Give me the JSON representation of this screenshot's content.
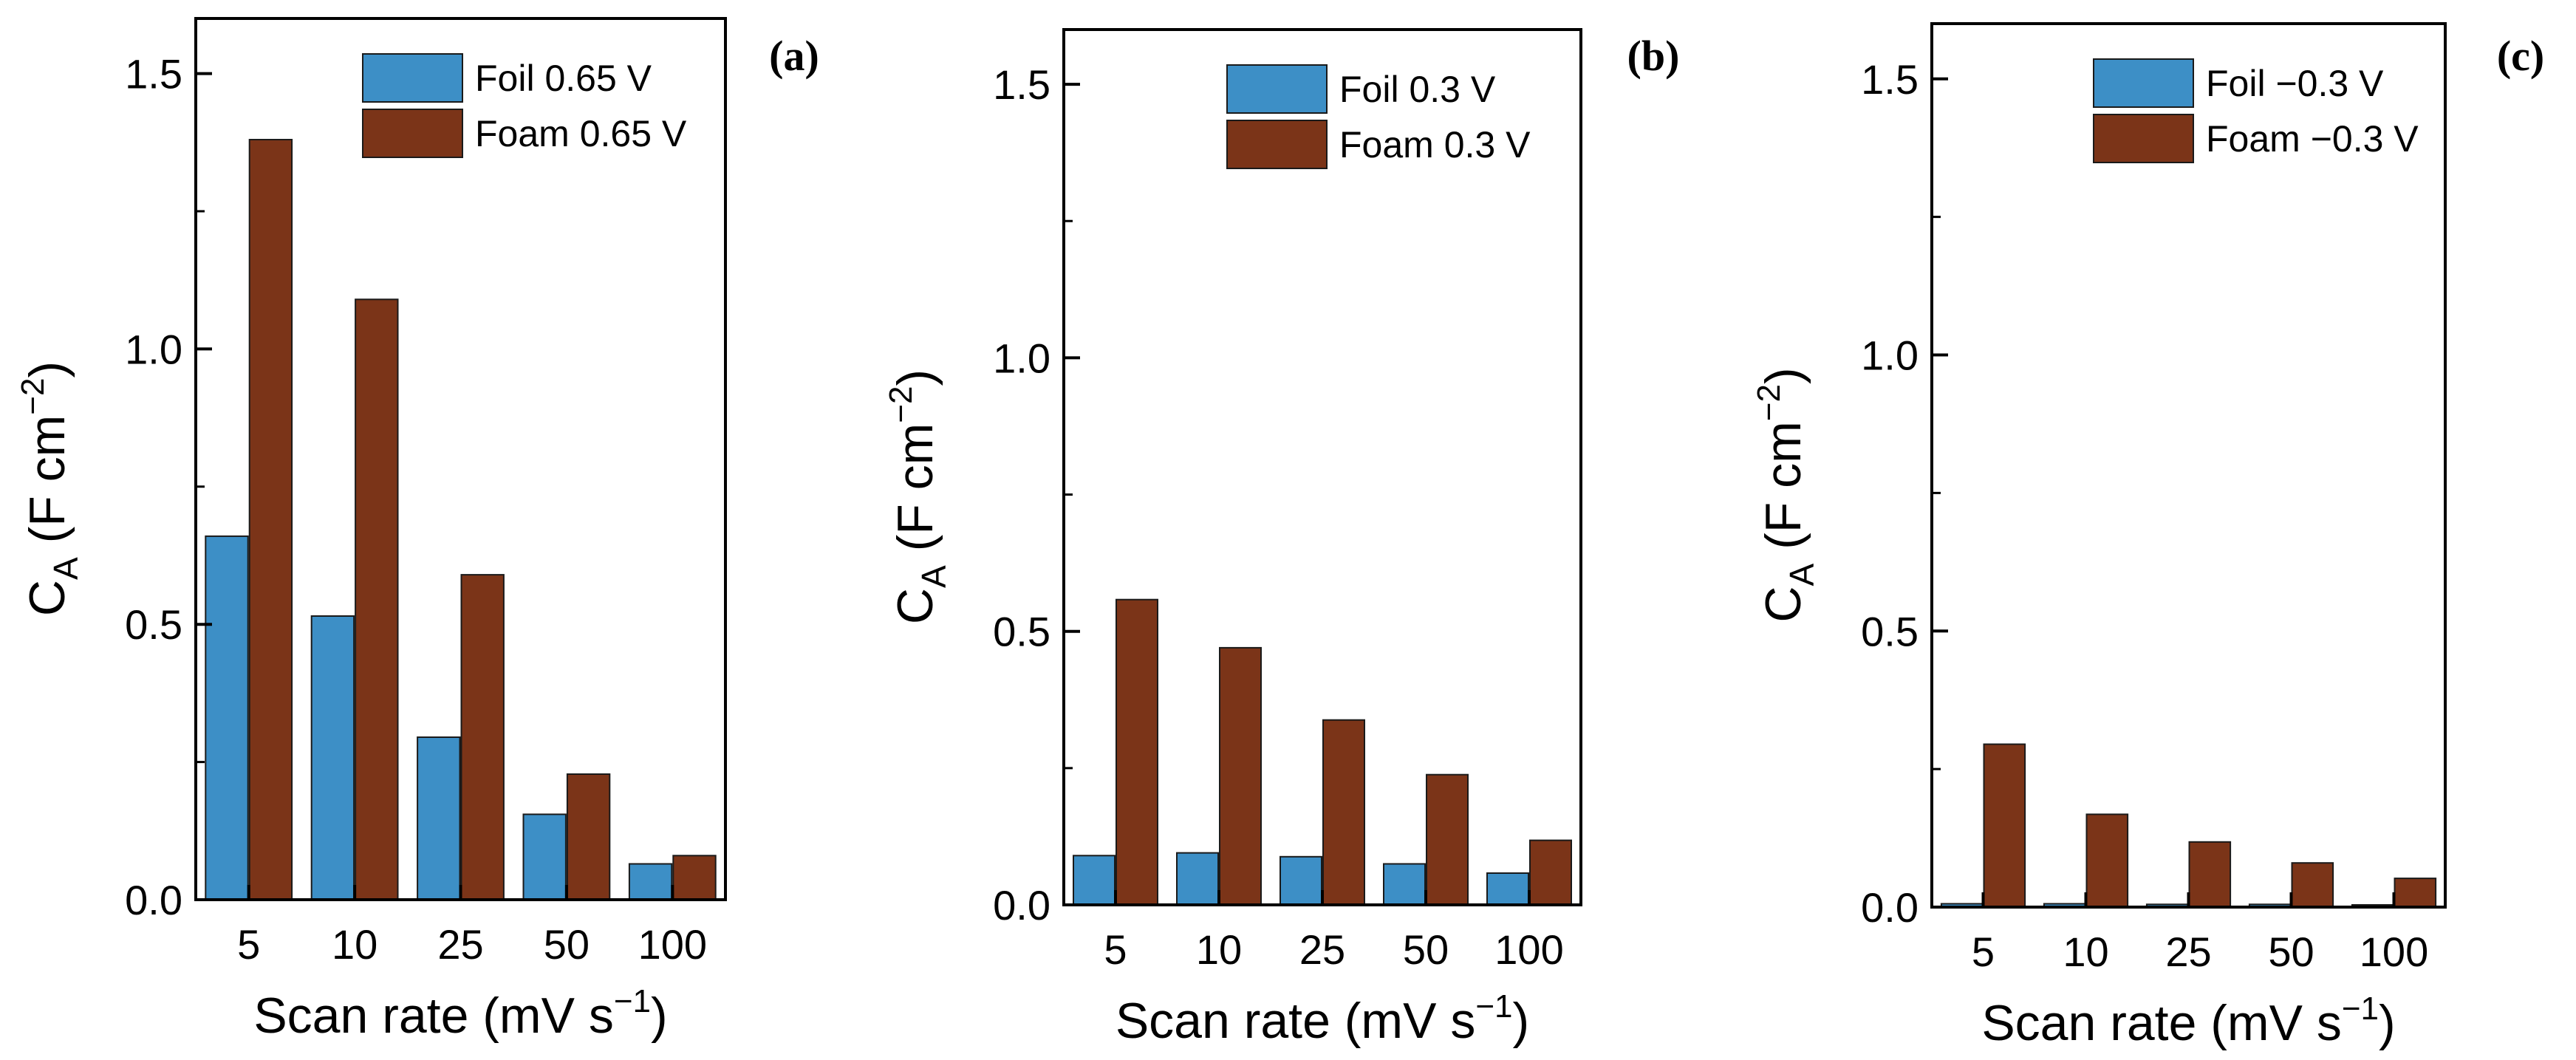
{
  "chart_data": [
    {
      "panel": "(a)",
      "type": "bar",
      "categories": [
        "5",
        "10",
        "25",
        "50",
        "100"
      ],
      "series": [
        {
          "name": "Foil 0.65 V",
          "color": "#3d8fc6",
          "values": [
            0.66,
            0.515,
            0.295,
            0.155,
            0.065
          ]
        },
        {
          "name": "Foam 0.65 V",
          "color": "#7b3418",
          "values": [
            1.38,
            1.09,
            0.59,
            0.228,
            0.08
          ]
        }
      ],
      "xlabel": "Scan rate (mV s⁻¹)",
      "xlabel_main": "Scan rate (mV s",
      "xlabel_sup": "−1",
      "xlabel_end": ")",
      "ylabel": "C_A (F cm⁻²)",
      "ylabel_main": "C",
      "ylabel_sub": "A",
      "ylabel_mid": " (F cm",
      "ylabel_sup": "−2",
      "ylabel_end": ")",
      "ylim": [
        0,
        1.6
      ],
      "yticks": [
        "0.0",
        "0.5",
        "1.0",
        "1.5"
      ],
      "ytick_values": [
        0,
        0.5,
        1.0,
        1.5
      ],
      "legend_position": "top-right"
    },
    {
      "panel": "(b)",
      "type": "bar",
      "categories": [
        "5",
        "10",
        "25",
        "50",
        "100"
      ],
      "series": [
        {
          "name": "Foil 0.3 V",
          "color": "#3d8fc6",
          "values": [
            0.09,
            0.095,
            0.088,
            0.075,
            0.058
          ]
        },
        {
          "name": "Foam 0.3 V",
          "color": "#7b3418",
          "values": [
            0.558,
            0.47,
            0.338,
            0.238,
            0.118
          ]
        }
      ],
      "xlabel": "Scan rate (mV s⁻¹)",
      "xlabel_main": "Scan rate (mV s",
      "xlabel_sup": "−1",
      "xlabel_end": ")",
      "ylabel": "C_A (F cm⁻²)",
      "ylabel_main": "C",
      "ylabel_sub": "A",
      "ylabel_mid": " (F cm",
      "ylabel_sup": "−2",
      "ylabel_end": ")",
      "ylim": [
        0,
        1.6
      ],
      "yticks": [
        "0.0",
        "0.5",
        "1.0",
        "1.5"
      ],
      "ytick_values": [
        0,
        0.5,
        1.0,
        1.5
      ],
      "legend_position": "top-right"
    },
    {
      "panel": "(c)",
      "type": "bar",
      "categories": [
        "5",
        "10",
        "25",
        "50",
        "100"
      ],
      "series": [
        {
          "name": "Foil −0.3 V",
          "color": "#3d8fc6",
          "values": [
            0.006,
            0.006,
            0.005,
            0.005,
            0.004
          ]
        },
        {
          "name": "Foam −0.3 V",
          "color": "#7b3418",
          "values": [
            0.295,
            0.168,
            0.118,
            0.08,
            0.052
          ]
        }
      ],
      "xlabel": "Scan rate (mV s⁻¹)",
      "xlabel_main": "Scan rate (mV s",
      "xlabel_sup": "−1",
      "xlabel_end": ")",
      "ylabel": "C_A (F cm⁻²)",
      "ylabel_main": "C",
      "ylabel_sub": "A",
      "ylabel_mid": " (F cm",
      "ylabel_sup": "−2",
      "ylabel_end": ")",
      "ylim": [
        0,
        1.6
      ],
      "yticks": [
        "0.0",
        "0.5",
        "1.0",
        "1.5"
      ],
      "ytick_values": [
        0,
        0.5,
        1.0,
        1.5
      ],
      "legend_position": "top-right"
    }
  ]
}
